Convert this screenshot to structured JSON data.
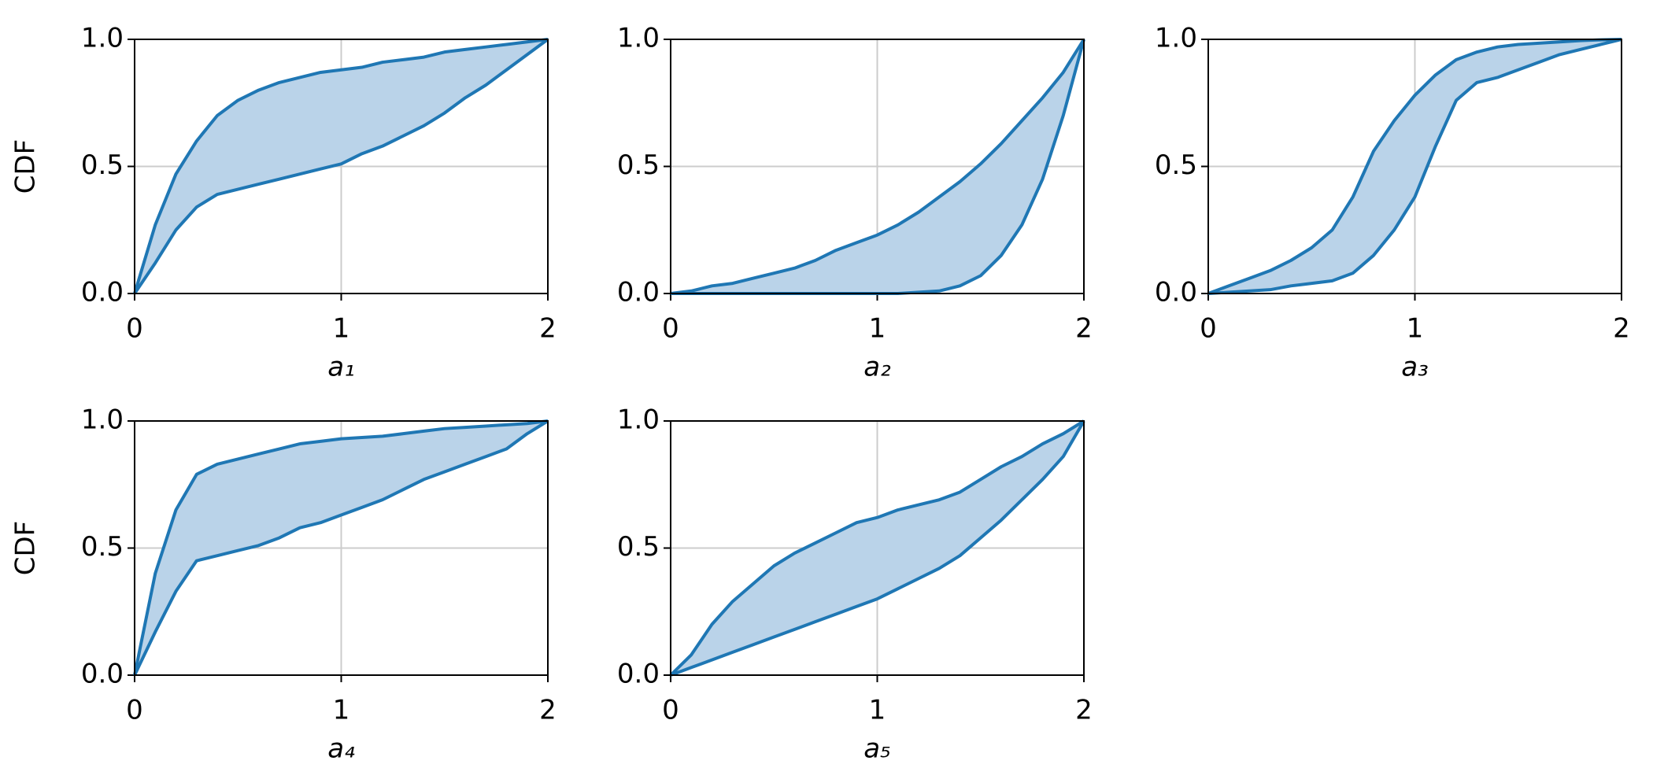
{
  "chart_data": [
    {
      "type": "line",
      "xlabel": "a₁",
      "ylabel": "CDF",
      "xlim": [
        0,
        2
      ],
      "ylim": [
        0,
        1
      ],
      "xticks": [
        0,
        1,
        2
      ],
      "yticks": [
        {
          "value": 0,
          "label": "0.0"
        },
        {
          "value": 0.5,
          "label": "0.5"
        },
        {
          "value": 1,
          "label": "1.0"
        }
      ],
      "grid": true,
      "fill_color": "#bad3e9",
      "x": [
        0,
        0.1,
        0.2,
        0.3,
        0.4,
        0.5,
        0.6,
        0.7,
        0.8,
        0.9,
        1,
        1.1,
        1.2,
        1.3,
        1.4,
        1.5,
        1.6,
        1.7,
        1.8,
        1.9,
        2
      ],
      "series": [
        {
          "color": "#1f77b4",
          "values": [
            0,
            0.27,
            0.47,
            0.6,
            0.7,
            0.76,
            0.8,
            0.83,
            0.85,
            0.87,
            0.88,
            0.89,
            0.91,
            0.92,
            0.93,
            0.95,
            0.96,
            0.97,
            0.98,
            0.99,
            1
          ]
        },
        {
          "color": "#1f77b4",
          "values": [
            0,
            0.12,
            0.25,
            0.34,
            0.39,
            0.41,
            0.43,
            0.45,
            0.47,
            0.49,
            0.51,
            0.55,
            0.58,
            0.62,
            0.66,
            0.71,
            0.77,
            0.82,
            0.88,
            0.94,
            1
          ]
        }
      ]
    },
    {
      "type": "line",
      "xlabel": "a₂",
      "xlim": [
        0,
        2
      ],
      "ylim": [
        0,
        1
      ],
      "xticks": [
        0,
        1,
        2
      ],
      "yticks": [
        {
          "value": 0,
          "label": "0.0"
        },
        {
          "value": 0.5,
          "label": "0.5"
        },
        {
          "value": 1,
          "label": "1.0"
        }
      ],
      "grid": true,
      "fill_color": "#bad3e9",
      "x": [
        0,
        0.1,
        0.2,
        0.3,
        0.4,
        0.5,
        0.6,
        0.7,
        0.8,
        0.9,
        1,
        1.1,
        1.2,
        1.3,
        1.4,
        1.5,
        1.6,
        1.7,
        1.8,
        1.9,
        2
      ],
      "series": [
        {
          "color": "#1f77b4",
          "values": [
            0,
            0.01,
            0.03,
            0.04,
            0.06,
            0.08,
            0.1,
            0.13,
            0.17,
            0.2,
            0.23,
            0.27,
            0.32,
            0.38,
            0.44,
            0.51,
            0.59,
            0.68,
            0.77,
            0.87,
            1
          ]
        },
        {
          "color": "#1f77b4",
          "values": [
            0,
            0,
            0,
            0,
            0,
            0,
            0,
            0,
            0,
            0,
            0,
            0,
            0.005,
            0.01,
            0.03,
            0.07,
            0.15,
            0.27,
            0.45,
            0.7,
            1
          ]
        }
      ]
    },
    {
      "type": "line",
      "xlabel": "a₃",
      "xlim": [
        0,
        2
      ],
      "ylim": [
        0,
        1
      ],
      "xticks": [
        0,
        1,
        2
      ],
      "yticks": [
        {
          "value": 0,
          "label": "0.0"
        },
        {
          "value": 0.5,
          "label": "0.5"
        },
        {
          "value": 1,
          "label": "1.0"
        }
      ],
      "grid": true,
      "fill_color": "#bad3e9",
      "x": [
        0,
        0.1,
        0.2,
        0.3,
        0.4,
        0.5,
        0.6,
        0.7,
        0.8,
        0.9,
        1,
        1.1,
        1.2,
        1.3,
        1.4,
        1.5,
        1.6,
        1.7,
        1.8,
        1.9,
        2
      ],
      "series": [
        {
          "color": "#1f77b4",
          "values": [
            0,
            0.03,
            0.06,
            0.09,
            0.13,
            0.18,
            0.25,
            0.38,
            0.56,
            0.68,
            0.78,
            0.86,
            0.92,
            0.95,
            0.97,
            0.98,
            0.985,
            0.99,
            0.995,
            0.998,
            1
          ]
        },
        {
          "color": "#1f77b4",
          "values": [
            0,
            0.005,
            0.01,
            0.015,
            0.03,
            0.04,
            0.05,
            0.08,
            0.15,
            0.25,
            0.38,
            0.58,
            0.76,
            0.83,
            0.85,
            0.88,
            0.91,
            0.94,
            0.96,
            0.98,
            1
          ]
        }
      ]
    },
    {
      "type": "line",
      "xlabel": "a₄",
      "ylabel": "CDF",
      "xlim": [
        0,
        2
      ],
      "ylim": [
        0,
        1
      ],
      "xticks": [
        0,
        1,
        2
      ],
      "yticks": [
        {
          "value": 0,
          "label": "0.0"
        },
        {
          "value": 0.5,
          "label": "0.5"
        },
        {
          "value": 1,
          "label": "1.0"
        }
      ],
      "grid": true,
      "fill_color": "#bad3e9",
      "x": [
        0,
        0.1,
        0.2,
        0.3,
        0.4,
        0.5,
        0.6,
        0.7,
        0.8,
        0.9,
        1,
        1.1,
        1.2,
        1.3,
        1.4,
        1.5,
        1.6,
        1.7,
        1.8,
        1.9,
        2
      ],
      "series": [
        {
          "color": "#1f77b4",
          "values": [
            0,
            0.4,
            0.65,
            0.79,
            0.83,
            0.85,
            0.87,
            0.89,
            0.91,
            0.92,
            0.93,
            0.935,
            0.94,
            0.95,
            0.96,
            0.97,
            0.975,
            0.98,
            0.985,
            0.99,
            1
          ]
        },
        {
          "color": "#1f77b4",
          "values": [
            0,
            0.17,
            0.33,
            0.45,
            0.47,
            0.49,
            0.51,
            0.54,
            0.58,
            0.6,
            0.63,
            0.66,
            0.69,
            0.73,
            0.77,
            0.8,
            0.83,
            0.86,
            0.89,
            0.95,
            1
          ]
        }
      ]
    },
    {
      "type": "line",
      "xlabel": "a₅",
      "xlim": [
        0,
        2
      ],
      "ylim": [
        0,
        1
      ],
      "xticks": [
        0,
        1,
        2
      ],
      "yticks": [
        {
          "value": 0,
          "label": "0.0"
        },
        {
          "value": 0.5,
          "label": "0.5"
        },
        {
          "value": 1,
          "label": "1.0"
        }
      ],
      "grid": true,
      "fill_color": "#bad3e9",
      "x": [
        0,
        0.1,
        0.2,
        0.3,
        0.4,
        0.5,
        0.6,
        0.7,
        0.8,
        0.9,
        1,
        1.1,
        1.2,
        1.3,
        1.4,
        1.5,
        1.6,
        1.7,
        1.8,
        1.9,
        2
      ],
      "series": [
        {
          "color": "#1f77b4",
          "values": [
            0,
            0.08,
            0.2,
            0.29,
            0.36,
            0.43,
            0.48,
            0.52,
            0.56,
            0.6,
            0.62,
            0.65,
            0.67,
            0.69,
            0.72,
            0.77,
            0.82,
            0.86,
            0.91,
            0.95,
            1
          ]
        },
        {
          "color": "#1f77b4",
          "values": [
            0,
            0.03,
            0.06,
            0.09,
            0.12,
            0.15,
            0.18,
            0.21,
            0.24,
            0.27,
            0.3,
            0.34,
            0.38,
            0.42,
            0.47,
            0.54,
            0.61,
            0.69,
            0.77,
            0.86,
            1
          ]
        }
      ]
    }
  ]
}
